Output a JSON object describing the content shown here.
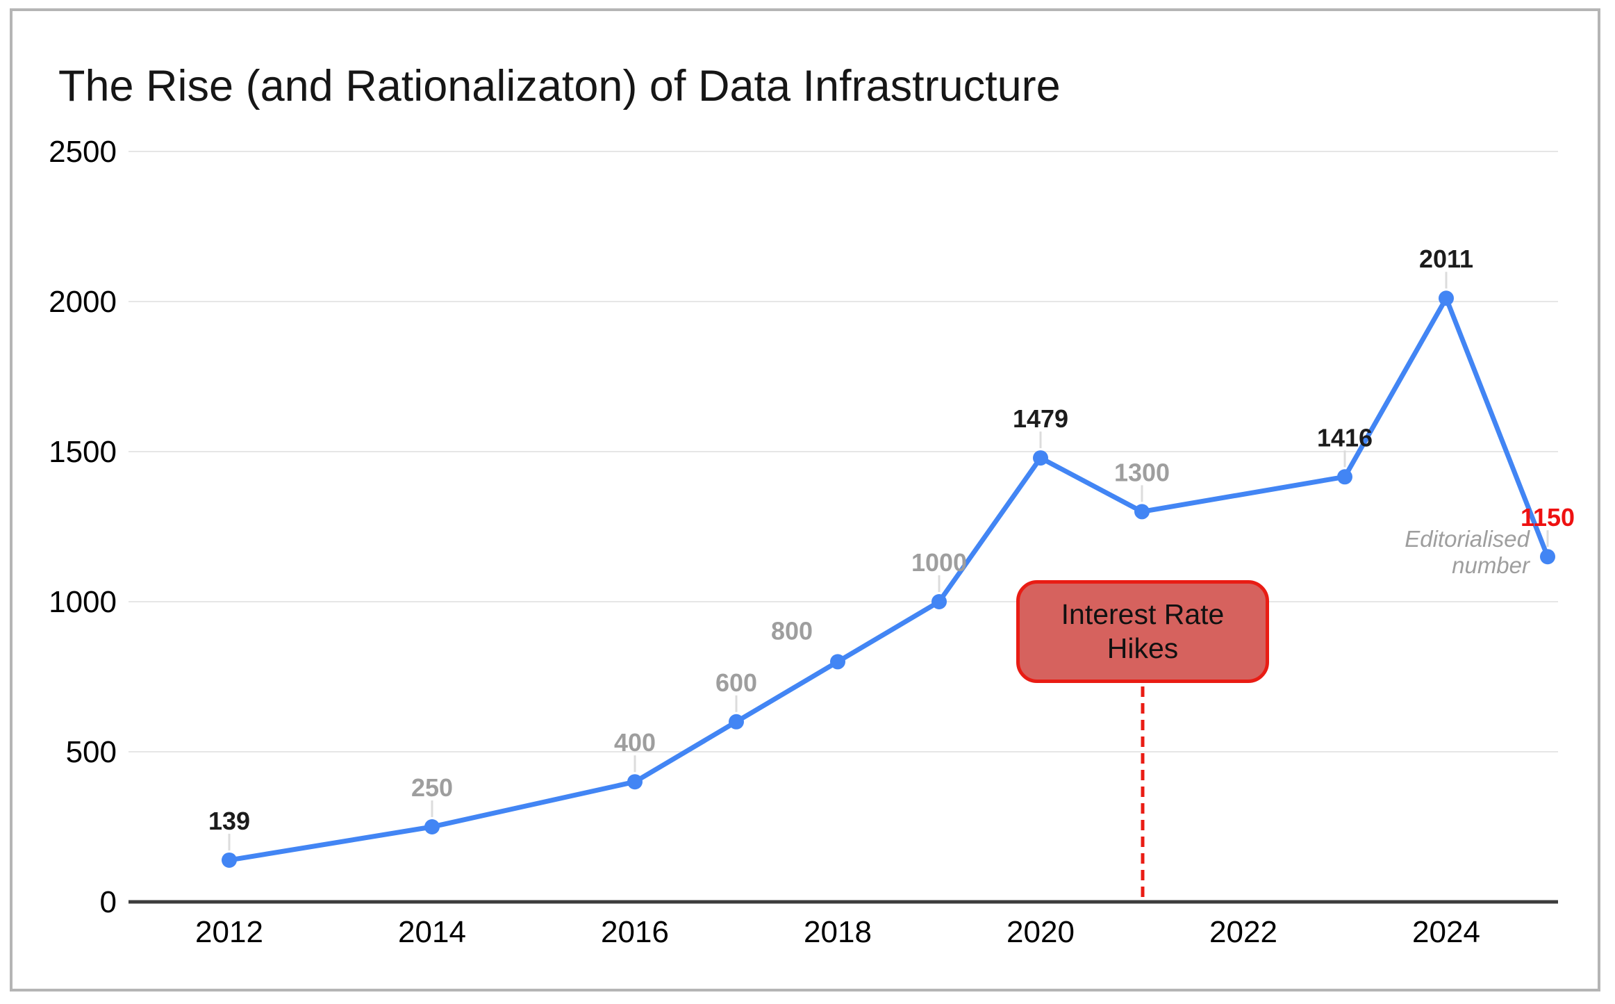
{
  "frame": {
    "border_color": "#b5b5b5",
    "background": "#ffffff"
  },
  "chart_data": {
    "type": "line",
    "title": "The Rise (and Rationalizaton) of Data Infrastructure",
    "x": [
      2012,
      2014,
      2016,
      2017,
      2018,
      2019,
      2020,
      2021,
      2023,
      2024,
      2025
    ],
    "values": [
      139,
      250,
      400,
      600,
      800,
      1000,
      1479,
      1300,
      1416,
      2011,
      1150
    ],
    "point_labels": [
      {
        "text": "139",
        "color": "black",
        "placement": "above"
      },
      {
        "text": "250",
        "color": "gray",
        "placement": "above"
      },
      {
        "text": "400",
        "color": "gray",
        "placement": "above"
      },
      {
        "text": "600",
        "color": "gray",
        "placement": "above"
      },
      {
        "text": "800",
        "color": "gray",
        "placement": "above-left"
      },
      {
        "text": "1000",
        "color": "gray",
        "placement": "above"
      },
      {
        "text": "1479",
        "color": "black",
        "placement": "above"
      },
      {
        "text": "1300",
        "color": "gray",
        "placement": "above"
      },
      {
        "text": "1416",
        "color": "black",
        "placement": "above"
      },
      {
        "text": "2011",
        "color": "black",
        "placement": "above"
      },
      {
        "text": "1150",
        "color": "red",
        "placement": "above"
      }
    ],
    "xticks": [
      2012,
      2014,
      2016,
      2018,
      2020,
      2022,
      2024
    ],
    "yticks": [
      0,
      500,
      1000,
      1500,
      2000,
      2500
    ],
    "ylim": [
      0,
      2500
    ],
    "grid": true,
    "legend": false,
    "line_color": "#4285f4",
    "marker_color": "#4285f4",
    "gridline_color": "#e6e6e6",
    "axis_line_color": "#3d3d3d",
    "tick_label_color": "#000000",
    "leader_line_color": "#dcdcdc",
    "label_colors": {
      "black": "#1c1c1c",
      "gray": "#9e9e9e",
      "red": "#ee1111"
    },
    "annotations": {
      "callout": {
        "label": "Interest Rate Hikes",
        "x_year": 2021,
        "fill": "#d6625e",
        "border_color": "#e91c14",
        "text_color": "#111111"
      },
      "dashed_line": {
        "x_year": 2021,
        "color": "#e91c14"
      },
      "note": {
        "line1": "Editorialised",
        "line2": "number",
        "color": "#9e9e9e"
      }
    }
  }
}
